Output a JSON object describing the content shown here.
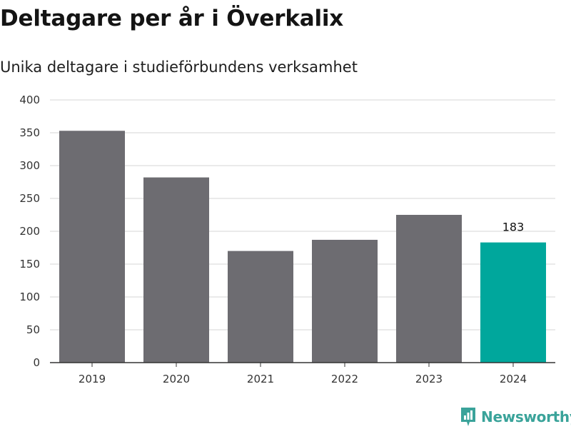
{
  "header": {
    "title": "Deltagare per år i Överkalix",
    "subtitle": "Unika deltagare i studieförbundens verksamhet"
  },
  "brand": {
    "name": "Newsworthy",
    "icon": "newsworthy-logo-icon"
  },
  "colors": {
    "bar": "#6d6c71",
    "highlight": "#00a79c",
    "grid": "#dddddd",
    "axis": "#333333"
  },
  "chart_data": {
    "type": "bar",
    "categories": [
      "2019",
      "2020",
      "2021",
      "2022",
      "2023",
      "2024"
    ],
    "values": [
      353,
      282,
      170,
      187,
      225,
      183
    ],
    "highlight_index": 5,
    "data_labels": [
      null,
      null,
      null,
      null,
      null,
      "183"
    ],
    "yticks": [
      "0",
      "50",
      "100",
      "150",
      "200",
      "250",
      "300",
      "350",
      "400"
    ],
    "ylim": [
      0,
      400
    ],
    "grid": true
  }
}
